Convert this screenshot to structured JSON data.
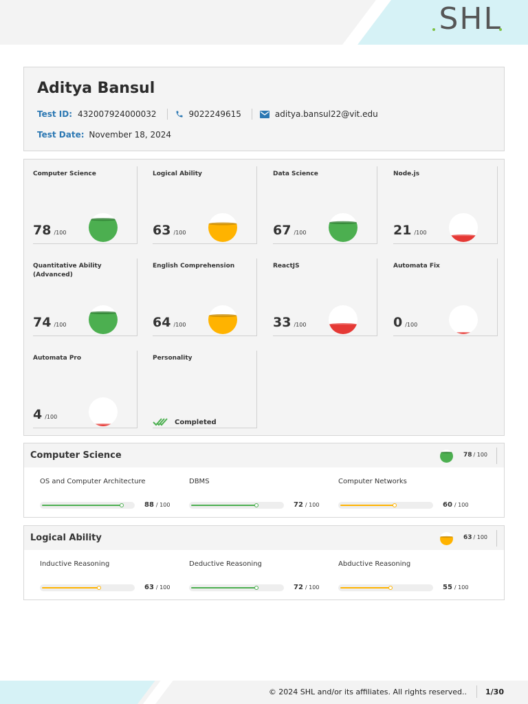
{
  "brand": {
    "logo_text": "SHL",
    "accent": "#2c78b3"
  },
  "profile": {
    "name": "Aditya Bansul",
    "test_id_label": "Test ID:",
    "test_id": "432007924000032",
    "phone": "9022249615",
    "email": "aditya.bansul22@vit.edu",
    "test_date_label": "Test Date:",
    "test_date": "November 18, 2024",
    "icons": [
      "phone-icon",
      "mail-icon"
    ]
  },
  "colors": {
    "green": "#4caf50",
    "amber": "#ffb300",
    "red": "#e53935",
    "green_dark": "#2e7d32",
    "amber_dark": "#c88a00"
  },
  "scores": [
    {
      "title": "Computer Science",
      "score": "78",
      "max": "/100",
      "value": 78,
      "level": "green"
    },
    {
      "title": "Logical Ability",
      "score": "63",
      "max": "/100",
      "value": 63,
      "level": "amber"
    },
    {
      "title": "Data Science",
      "score": "67",
      "max": "/100",
      "value": 67,
      "level": "green"
    },
    {
      "title": "Node.js",
      "score": "21",
      "max": "/100",
      "value": 21,
      "level": "red"
    },
    {
      "title": "Quantitative Ability (Advanced)",
      "score": "74",
      "max": "/100",
      "value": 74,
      "level": "green"
    },
    {
      "title": "English Comprehension",
      "score": "64",
      "max": "/100",
      "value": 64,
      "level": "amber"
    },
    {
      "title": "ReactJS",
      "score": "33",
      "max": "/100",
      "value": 33,
      "level": "red"
    },
    {
      "title": "Automata Fix",
      "score": "0",
      "max": "/100",
      "value": 0,
      "level": "red"
    },
    {
      "title": "Automata Pro",
      "score": "4",
      "max": "/100",
      "value": 4,
      "level": "red"
    }
  ],
  "personality": {
    "title": "Personality",
    "status": "Completed"
  },
  "sections": [
    {
      "title": "Computer Science",
      "score": "78",
      "max": "/ 100",
      "value": 78,
      "level": "green",
      "subs": [
        {
          "name": "OS and Computer Architecture",
          "score": "88",
          "max": "/ 100",
          "value": 88,
          "level": "green"
        },
        {
          "name": "DBMS",
          "score": "72",
          "max": "/ 100",
          "value": 72,
          "level": "green"
        },
        {
          "name": "Computer Networks",
          "score": "60",
          "max": "/ 100",
          "value": 60,
          "level": "amber"
        }
      ]
    },
    {
      "title": "Logical Ability",
      "score": "63",
      "max": "/ 100",
      "value": 63,
      "level": "amber",
      "subs": [
        {
          "name": "Inductive Reasoning",
          "score": "63",
          "max": "/ 100",
          "value": 63,
          "level": "amber"
        },
        {
          "name": "Deductive Reasoning",
          "score": "72",
          "max": "/ 100",
          "value": 72,
          "level": "green"
        },
        {
          "name": "Abductive Reasoning",
          "score": "55",
          "max": "/ 100",
          "value": 55,
          "level": "amber"
        }
      ]
    }
  ],
  "footer": {
    "copyright": "© 2024 SHL and/or its affiliates. All rights reserved..",
    "page": "1/30"
  }
}
